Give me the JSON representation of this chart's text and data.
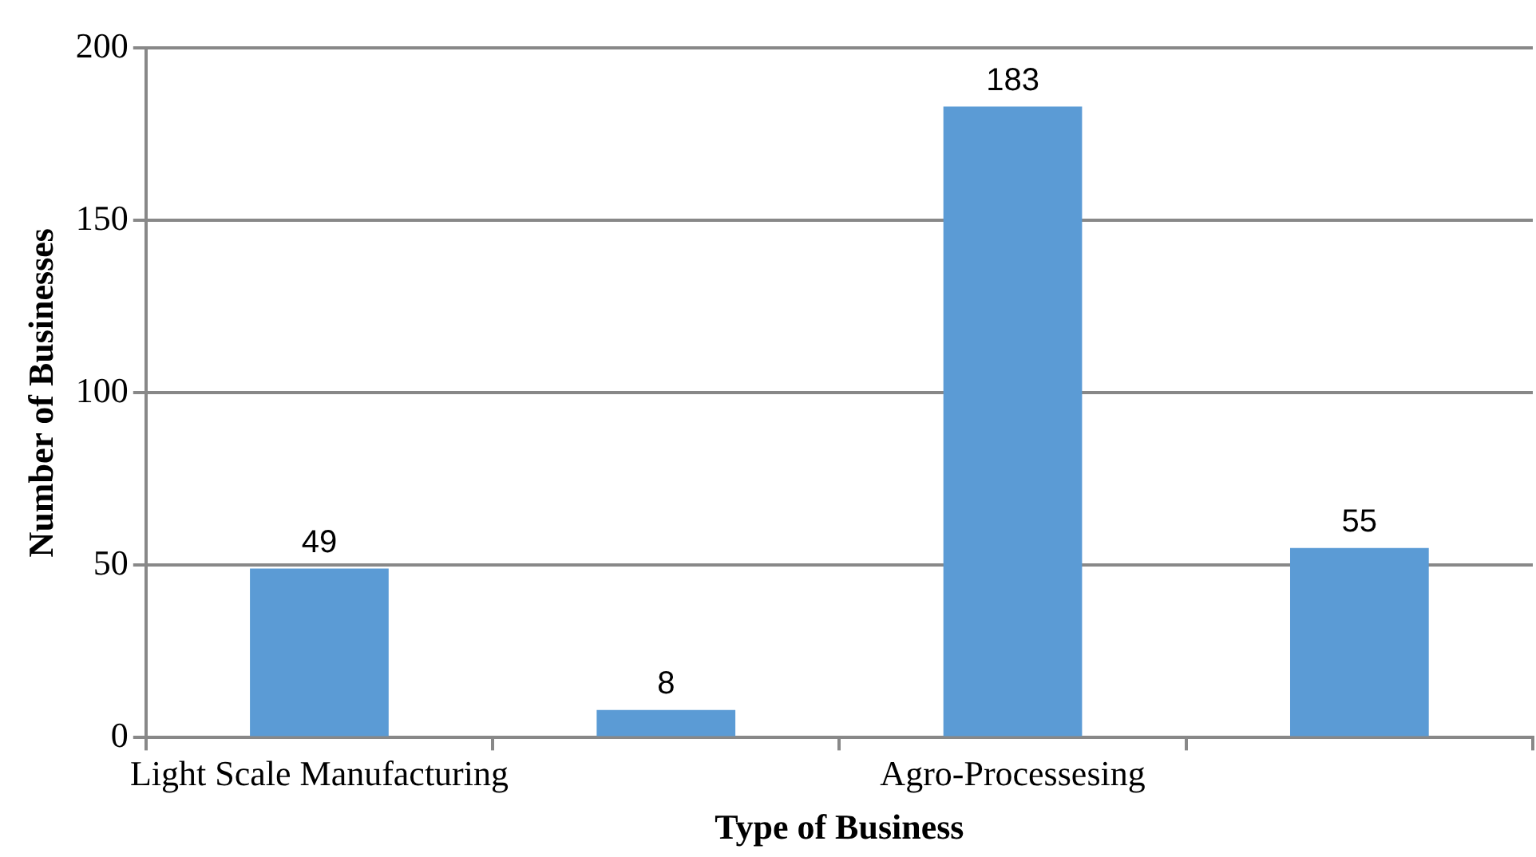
{
  "chart_data": {
    "type": "bar",
    "xlabel": "Type of Business",
    "ylabel": "Number of Businesses",
    "categories": [
      "Light Scale Manufacturing",
      null,
      "Agro-Processesing",
      null
    ],
    "values": [
      49,
      8,
      183,
      55
    ],
    "color": "#5b9bd5",
    "ylim": [
      0,
      200
    ],
    "yticks": [
      0,
      50,
      100,
      150,
      200
    ],
    "grid": "y",
    "data_labels": true
  }
}
